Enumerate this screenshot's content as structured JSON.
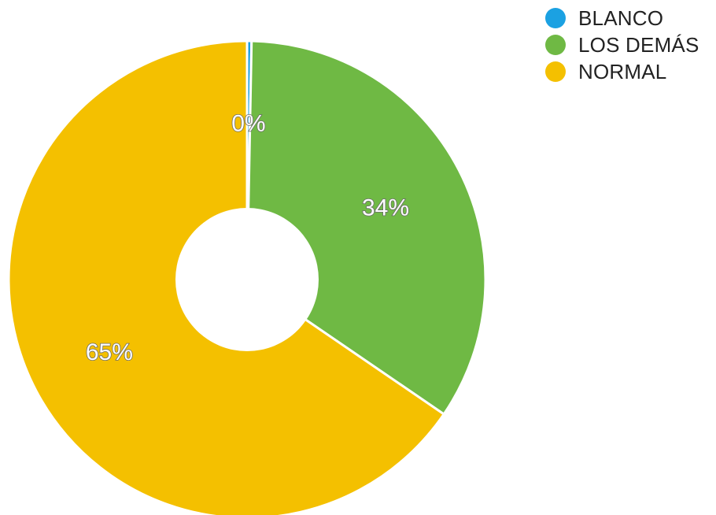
{
  "chart_data": {
    "type": "pie",
    "title": "",
    "donut": true,
    "legend_position": "top-right",
    "categories": [
      "BLANCO",
      "LOS DEMÁS",
      "NORMAL"
    ],
    "values": [
      0.3,
      34,
      65
    ],
    "labels": [
      "0%",
      "34%",
      "65%"
    ],
    "colors": [
      "#1ba1e2",
      "#6fb944",
      "#f4c000"
    ]
  }
}
